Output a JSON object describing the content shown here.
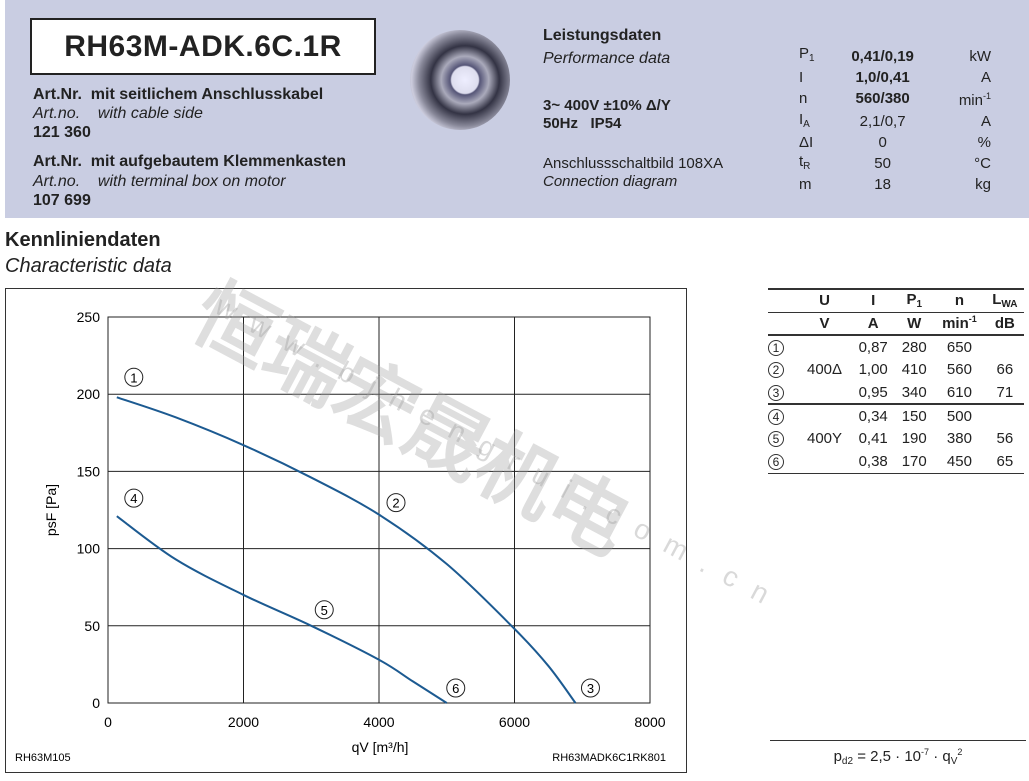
{
  "header": {
    "model": "RH63M-ADK.6C.1R",
    "art1": {
      "label_de": "Art.Nr.",
      "desc_de": "mit seitlichem Anschlusskabel",
      "label_en": "Art.no.",
      "desc_en": "with cable side",
      "number": "121 360"
    },
    "art2": {
      "label_de": "Art.Nr.",
      "desc_de": "mit aufgebautem Klemmenkasten",
      "label_en": "Art.no.",
      "desc_en": "with terminal box on motor",
      "number": "107 699"
    }
  },
  "performance": {
    "title_de": "Leistungsdaten",
    "title_en": "Performance data",
    "voltage": "3~ 400V ±10% Δ/Y",
    "freq": "50Hz   IP54",
    "diagram_de": "Anschlussschaltbild 108XA",
    "diagram_en": "Connection diagram",
    "rows": [
      {
        "sym": "P",
        "sub": "1",
        "val": "0,41/0,19",
        "unit": "kW",
        "bold": true
      },
      {
        "sym": "I",
        "sub": "",
        "val": "1,0/0,41",
        "unit": "A",
        "bold": true
      },
      {
        "sym": "n",
        "sub": "",
        "val": "560/380",
        "unit": "min",
        "sup": "-1",
        "bold": true
      },
      {
        "sym": "I",
        "sub": "A",
        "val": "2,1/0,7",
        "unit": "A"
      },
      {
        "sym": "ΔI",
        "sub": "",
        "val": "0",
        "unit": "%"
      },
      {
        "sym": "t",
        "sub": "R",
        "val": "50",
        "unit": "°C"
      },
      {
        "sym": "m",
        "sub": "",
        "val": "18",
        "unit": "kg"
      }
    ]
  },
  "section": {
    "title_de": "Kennliniendaten",
    "title_en": "Characteristic data"
  },
  "watermark": {
    "cn": "恒瑞宏晟机电",
    "url": "www.bjhengrui.com.cn"
  },
  "table": {
    "headers": [
      "U",
      "I",
      "P1",
      "n",
      "LWA"
    ],
    "units": [
      "V",
      "A",
      "W",
      "min-1",
      "dB"
    ],
    "rows": [
      {
        "pt": "1",
        "U": "",
        "I": "0,87",
        "P": "280",
        "n": "650",
        "L": ""
      },
      {
        "pt": "2",
        "U": "400Δ",
        "I": "1,00",
        "P": "410",
        "n": "560",
        "L": "66"
      },
      {
        "pt": "3",
        "U": "",
        "I": "0,95",
        "P": "340",
        "n": "610",
        "L": "71"
      },
      {
        "pt": "4",
        "U": "",
        "I": "0,34",
        "P": "150",
        "n": "500",
        "L": ""
      },
      {
        "pt": "5",
        "U": "400Y",
        "I": "0,41",
        "P": "190",
        "n": "380",
        "L": "56"
      },
      {
        "pt": "6",
        "U": "",
        "I": "0,38",
        "P": "170",
        "n": "450",
        "L": "65"
      }
    ],
    "formula": "p_d2 = 2,5 · 10^-7 · q_V^2"
  },
  "chart_data": {
    "type": "line",
    "xlabel": "qV [m³/h]",
    "ylabel": "psF [Pa]",
    "xlim": [
      0,
      8000
    ],
    "ylim": [
      0,
      250
    ],
    "xticks": [
      0,
      2000,
      4000,
      6000,
      8000
    ],
    "yticks": [
      0,
      50,
      100,
      150,
      200,
      250
    ],
    "grid": true,
    "footer_left": "RH63M105",
    "footer_right": "RH63MADK6C1RK801",
    "series": [
      {
        "points": [
          [
            130,
            198
          ],
          [
            1000,
            185
          ],
          [
            2000,
            167
          ],
          [
            3000,
            146
          ],
          [
            4000,
            122
          ],
          [
            5000,
            90
          ],
          [
            6000,
            48
          ],
          [
            6500,
            24
          ],
          [
            6900,
            0
          ]
        ],
        "markers": [
          {
            "label": "1",
            "at": [
              130,
              198
            ]
          },
          {
            "label": "2",
            "at": [
              4000,
              122
            ]
          },
          {
            "label": "3",
            "at": [
              6900,
              0
            ]
          }
        ]
      },
      {
        "points": [
          [
            130,
            121
          ],
          [
            1000,
            93
          ],
          [
            2000,
            70
          ],
          [
            3000,
            50
          ],
          [
            4000,
            28
          ],
          [
            4500,
            14
          ],
          [
            5000,
            0
          ]
        ],
        "markers": [
          {
            "label": "4",
            "at": [
              130,
              121
            ]
          },
          {
            "label": "5",
            "at": [
              3000,
              50
            ]
          },
          {
            "label": "6",
            "at": [
              5000,
              0
            ]
          }
        ]
      }
    ],
    "color": "#1c5a91"
  }
}
